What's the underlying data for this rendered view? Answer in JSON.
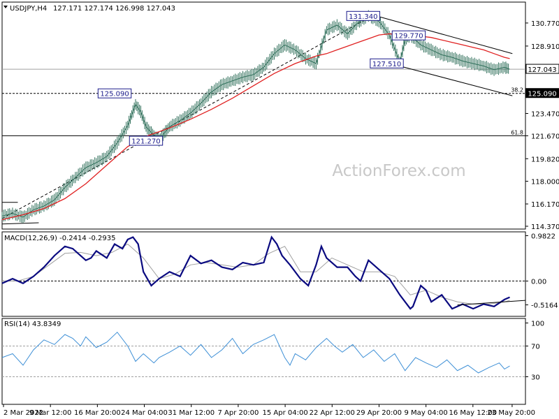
{
  "header": {
    "symbol_label": "USDJPY,H4",
    "ohlc_label": "127.171 127.174 126.998 127.043",
    "watermark": "ActionForex.com"
  },
  "colors": {
    "price": "#2f6f5a",
    "sma": "#e02020",
    "macd": "#0a0a80",
    "signal": "#a0a0a0",
    "rsi": "#3d8fd6",
    "label_border": "#1a1a8a",
    "current_bg": "#000000"
  },
  "chart_data": [
    {
      "type": "line",
      "panel": "price",
      "title": "USDJPY,H4",
      "y_ticks": [
        "130.770",
        "128.910",
        "127.043",
        "125.090",
        "123.470",
        "121.670",
        "119.820",
        "118.000",
        "116.170",
        "114.370"
      ],
      "y_tick_values": [
        130.77,
        128.91,
        127.043,
        125.09,
        123.47,
        121.67,
        119.82,
        118.0,
        116.17,
        114.37
      ],
      "ylim": [
        114.2,
        132.4
      ],
      "x_labels": [
        "2 Mar 2022",
        "9 Mar 12:00",
        "16 Mar 20:00",
        "24 Mar 04:00",
        "31 Mar 12:00",
        "7 Apr 20:00",
        "15 Apr 04:00",
        "22 Apr 12:00",
        "29 Apr 20:00",
        "9 May 04:00",
        "16 May 12:00",
        "23 May 20:00"
      ],
      "xlim": [
        0,
        100
      ],
      "series": [
        {
          "role": "price",
          "x": [
            0,
            2,
            4,
            6,
            8,
            10,
            12,
            14,
            16,
            18,
            20,
            22,
            24,
            25.5,
            26.5,
            27.5,
            29,
            30,
            31,
            32,
            34,
            36,
            38,
            40,
            42,
            44,
            46,
            48,
            50,
            52,
            54,
            56,
            58,
            60,
            62,
            64,
            66,
            68,
            70,
            72,
            74,
            76,
            77,
            78,
            80,
            82,
            84,
            86,
            88,
            90,
            92,
            94,
            96,
            97
          ],
          "y": [
            115.2,
            115.4,
            115.1,
            115.7,
            116.0,
            116.5,
            117.5,
            118.3,
            119.1,
            119.5,
            120.0,
            121.1,
            122.5,
            124.2,
            123.6,
            122.4,
            121.7,
            121.3,
            121.9,
            122.4,
            122.9,
            123.5,
            124.3,
            125.2,
            125.8,
            126.1,
            126.4,
            126.6,
            127.2,
            128.3,
            129.0,
            128.6,
            127.9,
            127.5,
            130.2,
            130.6,
            129.9,
            130.8,
            131.34,
            130.9,
            129.8,
            127.6,
            129.4,
            129.77,
            129.0,
            128.6,
            128.2,
            128.0,
            127.7,
            127.5,
            127.3,
            127.0,
            127.2,
            127.04
          ]
        },
        {
          "role": "moving average",
          "x": [
            0,
            4,
            8,
            12,
            16,
            20,
            24,
            28,
            32,
            36,
            40,
            44,
            48,
            52,
            56,
            60,
            62,
            64,
            66,
            68,
            70,
            72,
            74,
            76,
            78,
            80,
            82,
            84,
            86,
            88,
            90,
            92,
            94,
            96,
            97
          ],
          "y": [
            114.9,
            115.3,
            115.8,
            116.6,
            117.8,
            119.3,
            120.8,
            121.7,
            122.3,
            123.0,
            123.8,
            124.7,
            125.7,
            126.7,
            127.5,
            128.1,
            128.3,
            128.6,
            128.9,
            129.2,
            129.5,
            129.8,
            129.9,
            129.8,
            129.7,
            129.7,
            129.6,
            129.4,
            129.2,
            129.0,
            128.8,
            128.6,
            128.3,
            128.0,
            127.9
          ]
        }
      ],
      "reference_levels": [
        {
          "value": 125.09,
          "style": "dashed",
          "label": "125.090",
          "fib_label": "38.2"
        },
        {
          "value": 121.67,
          "style": "solid",
          "label": "",
          "fib_label": "61.8"
        },
        {
          "value": 127.043,
          "style": "solid-gray",
          "label": "127.043"
        }
      ],
      "annotations": [
        {
          "text": "131.340",
          "x": 69,
          "y": 131.34
        },
        {
          "text": "129.770",
          "x": 77.7,
          "y": 129.77
        },
        {
          "text": "127.510",
          "x": 73.5,
          "y": 127.51
        },
        {
          "text": "125.090",
          "x": 21.5,
          "y": 125.09
        },
        {
          "text": "121.270",
          "x": 27.5,
          "y": 121.27
        }
      ],
      "trendlines": [
        {
          "style": "dashed",
          "x": [
            0,
            71
          ],
          "y": [
            115.0,
            131.4
          ]
        },
        {
          "style": "solid",
          "x": [
            71,
            97.5
          ],
          "y": [
            131.4,
            128.3
          ]
        },
        {
          "style": "solid",
          "x": [
            71,
            97.5
          ],
          "y": [
            127.85,
            124.9
          ]
        },
        {
          "style": "solid",
          "x": [
            0,
            7
          ],
          "y": [
            114.55,
            114.65
          ]
        },
        {
          "style": "solid",
          "x": [
            0,
            3
          ],
          "y": [
            116.3,
            116.3
          ]
        }
      ]
    },
    {
      "type": "line",
      "panel": "macd",
      "title": "MACD(12,26,9) -0.2414 -0.2935",
      "y_ticks": [
        "0.9822",
        "0.00",
        "-0.5164"
      ],
      "y_tick_values": [
        0.9822,
        0.0,
        -0.5164
      ],
      "ylim": [
        -0.75,
        1.05
      ],
      "series": [
        {
          "role": "macd",
          "x": [
            0,
            2,
            4,
            6,
            8,
            10,
            12,
            13.5,
            15,
            16,
            17,
            18,
            20,
            21.5,
            23,
            24,
            25,
            26,
            27,
            28.5,
            30,
            32,
            34,
            36,
            38,
            40,
            42,
            44,
            46,
            48,
            50,
            51.5,
            52.5,
            53.5,
            55,
            57,
            58.5,
            60,
            61,
            62,
            64,
            66,
            67.5,
            68.5,
            70,
            72,
            74,
            76,
            78,
            78.5,
            80,
            81,
            82,
            84,
            86,
            88,
            90,
            92,
            94,
            96,
            97
          ],
          "y": [
            -0.05,
            0.05,
            -0.05,
            0.1,
            0.3,
            0.55,
            0.75,
            0.7,
            0.55,
            0.45,
            0.5,
            0.65,
            0.5,
            0.8,
            0.7,
            0.9,
            0.95,
            0.8,
            0.2,
            -0.1,
            0.05,
            0.2,
            0.1,
            0.55,
            0.38,
            0.45,
            0.3,
            0.25,
            0.4,
            0.35,
            0.4,
            0.95,
            0.8,
            0.55,
            0.35,
            0.05,
            -0.1,
            0.35,
            0.75,
            0.5,
            0.3,
            0.3,
            0.1,
            0.0,
            0.45,
            0.25,
            0.05,
            -0.3,
            -0.6,
            -0.55,
            -0.1,
            -0.2,
            -0.45,
            -0.3,
            -0.6,
            -0.5,
            -0.6,
            -0.5,
            -0.55,
            -0.4,
            -0.35
          ]
        },
        {
          "role": "signal",
          "x": [
            0,
            3,
            6,
            9,
            12,
            15,
            18,
            21,
            24,
            27,
            30,
            33,
            36,
            39,
            42,
            45,
            48,
            51,
            54,
            57,
            60,
            63,
            66,
            69,
            72,
            75,
            78,
            81,
            84,
            87,
            90,
            93,
            96,
            97
          ],
          "y": [
            0.0,
            0.0,
            0.1,
            0.35,
            0.6,
            0.62,
            0.55,
            0.62,
            0.8,
            0.5,
            0.05,
            0.15,
            0.35,
            0.4,
            0.35,
            0.3,
            0.35,
            0.6,
            0.75,
            0.2,
            0.2,
            0.5,
            0.35,
            0.2,
            0.2,
            0.1,
            -0.3,
            -0.2,
            -0.35,
            -0.45,
            -0.5,
            -0.5,
            -0.45,
            -0.42
          ]
        }
      ],
      "trendlines": [
        {
          "style": "solid",
          "x": [
            87,
            100
          ],
          "y": [
            -0.52,
            -0.42
          ]
        }
      ]
    },
    {
      "type": "line",
      "panel": "rsi",
      "title": "RSI(14) 43.8349",
      "y_ticks": [
        "100",
        "70",
        "30"
      ],
      "y_tick_values": [
        100,
        70,
        30
      ],
      "ylim": [
        -5,
        105
      ],
      "series": [
        {
          "role": "rsi",
          "x": [
            0,
            2,
            4,
            6,
            8,
            10,
            12,
            13.5,
            15,
            16,
            18,
            20,
            22,
            24,
            25.5,
            27,
            29,
            30,
            32,
            34,
            36,
            38,
            40,
            42,
            44,
            46,
            48,
            50,
            52,
            54,
            55,
            56,
            58,
            60,
            62,
            63.5,
            65,
            67,
            69,
            71,
            73,
            75,
            77,
            79,
            81,
            83,
            85,
            87,
            89,
            91,
            93,
            95,
            96,
            97
          ],
          "y": [
            55,
            60,
            45,
            65,
            78,
            72,
            85,
            80,
            70,
            82,
            68,
            75,
            88,
            70,
            50,
            60,
            48,
            55,
            62,
            70,
            58,
            72,
            55,
            65,
            80,
            60,
            72,
            78,
            85,
            55,
            45,
            60,
            52,
            68,
            80,
            70,
            62,
            72,
            55,
            65,
            50,
            60,
            38,
            55,
            48,
            42,
            52,
            38,
            45,
            35,
            42,
            48,
            40,
            44
          ]
        }
      ]
    }
  ]
}
